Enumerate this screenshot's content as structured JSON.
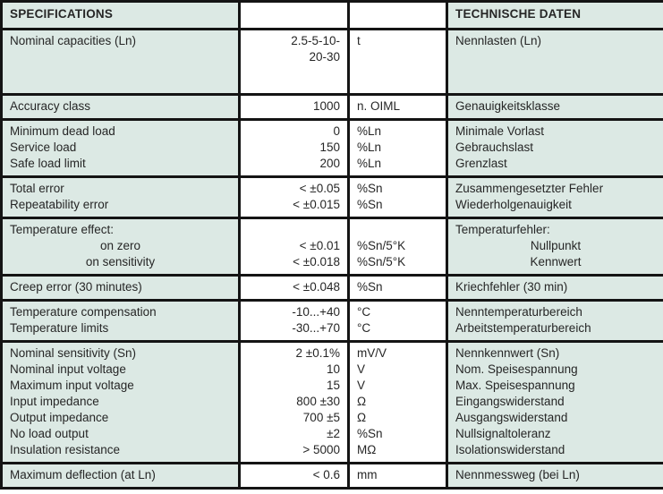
{
  "table": {
    "header": {
      "spec": "SPECIFICATIONS",
      "value": "",
      "unit": "",
      "de": "TECHNISCHE DATEN"
    },
    "rows": [
      {
        "spec": [
          "Nominal capacities (Ln)"
        ],
        "value": [
          "2.5-5-10-",
          "20-30"
        ],
        "unit": [
          "t"
        ],
        "de": [
          "Nennlasten (Ln)"
        ]
      },
      {
        "spec": [
          "Accuracy class"
        ],
        "value": [
          "1000"
        ],
        "unit": [
          "n. OIML"
        ],
        "de": [
          "Genauigkeitsklasse"
        ]
      },
      {
        "spec": [
          "Minimum dead load",
          "Service load",
          "Safe load limit"
        ],
        "value": [
          "0",
          "150",
          "200"
        ],
        "unit": [
          "%Ln",
          "%Ln",
          "%Ln"
        ],
        "de": [
          "Minimale Vorlast",
          "Gebrauchslast",
          "Grenzlast"
        ]
      },
      {
        "spec": [
          "Total error",
          "Repeatability error"
        ],
        "value": [
          "< ±0.05",
          "< ±0.015"
        ],
        "unit": [
          "%Sn",
          "%Sn"
        ],
        "de": [
          "Zusammengesetzter Fehler",
          "Wiederholgenauigkeit"
        ]
      },
      {
        "spec": [
          "Temperature effect:",
          {
            "text": "on zero",
            "center": true
          },
          {
            "text": "on sensitivity",
            "center": true
          }
        ],
        "value": [
          "",
          "< ±0.01",
          "< ±0.018"
        ],
        "unit": [
          "",
          "%Sn/5°K",
          "%Sn/5°K"
        ],
        "de": [
          "Temperaturfehler:",
          {
            "text": "Nullpunkt",
            "center": true
          },
          {
            "text": "Kennwert",
            "center": true
          }
        ]
      },
      {
        "spec": [
          "Creep error (30 minutes)"
        ],
        "value": [
          "< ±0.048"
        ],
        "unit": [
          "%Sn"
        ],
        "de": [
          "Kriechfehler (30 min)"
        ]
      },
      {
        "spec": [
          "Temperature compensation",
          "Temperature limits"
        ],
        "value": [
          "-10...+40",
          "-30...+70"
        ],
        "unit": [
          "°C",
          "°C"
        ],
        "de": [
          "Nenntemperaturbereich",
          "Arbeitstemperaturbereich"
        ]
      },
      {
        "spec": [
          "Nominal sensitivity (Sn)",
          "Nominal input voltage",
          "Maximum input voltage",
          "Input impedance",
          "Output impedance",
          "No load output",
          "Insulation resistance"
        ],
        "value": [
          "2 ±0.1%",
          "10",
          "15",
          "800 ±30",
          "700 ±5",
          "±2",
          "> 5000"
        ],
        "unit": [
          "mV/V",
          "V",
          "V",
          "Ω",
          "Ω",
          "%Sn",
          "MΩ"
        ],
        "de": [
          "Nennkennwert (Sn)",
          "Nom. Speisespannung",
          "Max. Speisespannung",
          "Eingangswiderstand",
          "Ausgangswiderstand",
          "Nullsignaltoleranz",
          "Isolationswiderstand"
        ]
      },
      {
        "spec": [
          "Maximum deflection (at Ln)"
        ],
        "value": [
          "< 0.6"
        ],
        "unit": [
          "mm"
        ],
        "de": [
          "Nennmessweg (bei Ln)"
        ]
      }
    ],
    "colors": {
      "label_cell_bg": "#dce9e4",
      "value_cell_bg": "#ffffff",
      "border": "#141414",
      "text": "#262626"
    }
  }
}
